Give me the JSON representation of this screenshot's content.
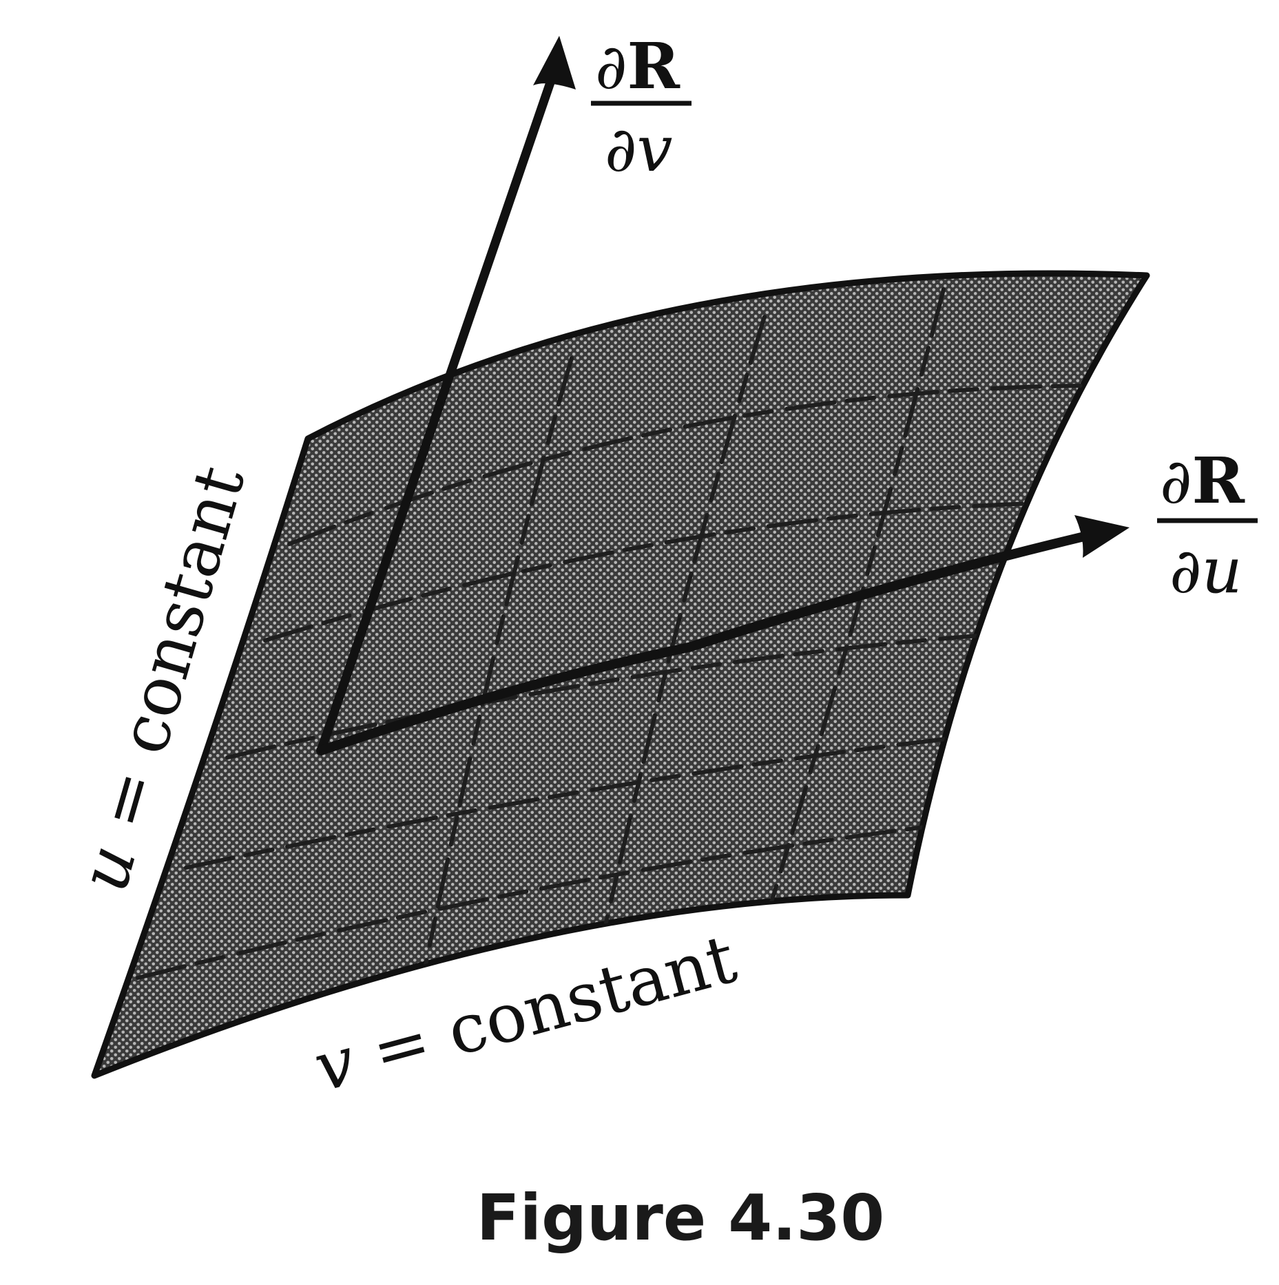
{
  "labels": {
    "dR_dv": {
      "numerator_symbol": "∂",
      "numerator_var": "R",
      "denominator_symbol": "∂",
      "denominator_var": "v"
    },
    "dR_du": {
      "numerator_symbol": "∂",
      "numerator_var": "R",
      "denominator_symbol": "∂",
      "denominator_var": "u"
    },
    "u_constant": {
      "var": "u",
      "rest": " = constant"
    },
    "v_constant": {
      "var": "v",
      "rest": " = constant"
    }
  },
  "caption": "Figure 4.30",
  "colors": {
    "surface_fill": "#3e3e3e",
    "surface_dots": "#a8a8a8",
    "ink": "#111111",
    "background": "#ffffff"
  }
}
